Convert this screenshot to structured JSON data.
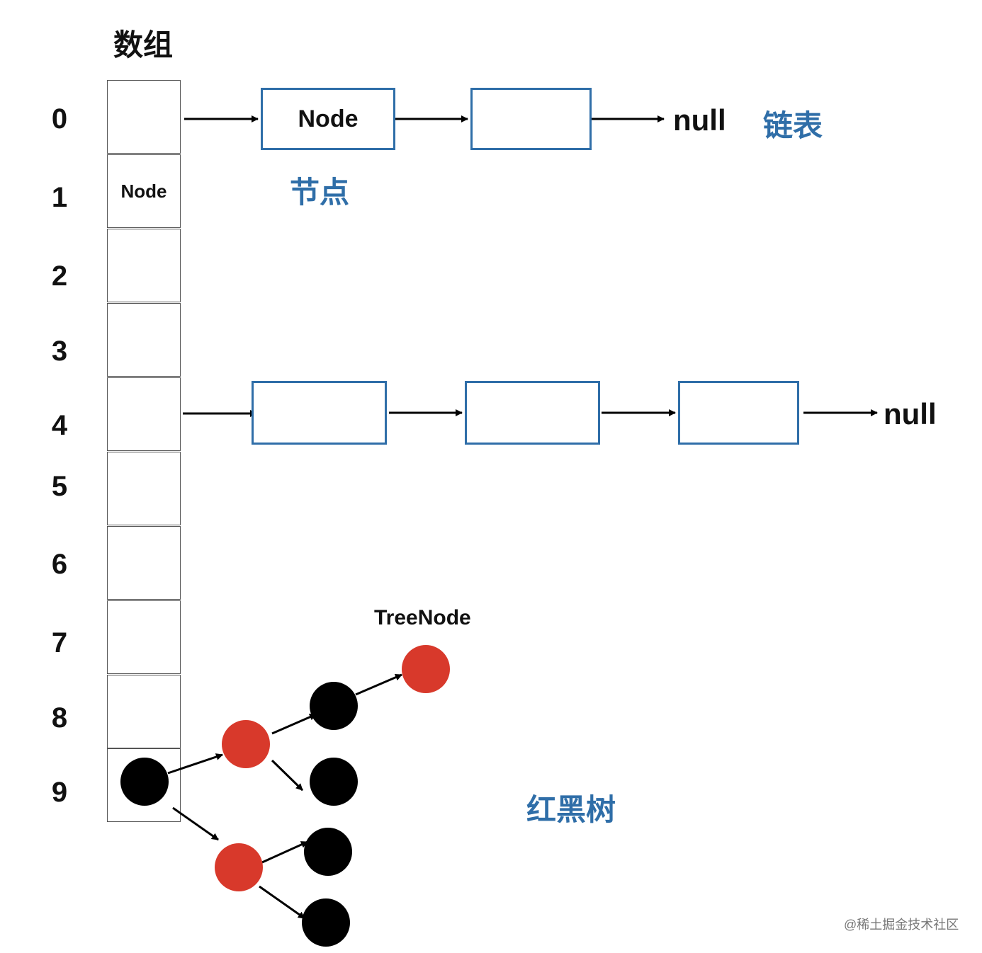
{
  "array": {
    "title": "数组",
    "indices": [
      "0",
      "1",
      "2",
      "3",
      "4",
      "5",
      "6",
      "7",
      "8",
      "9"
    ],
    "cells": [
      "",
      "Node",
      "",
      "",
      "",
      "",
      "",
      "",
      "",
      ""
    ]
  },
  "linked_list_row0": {
    "node_label": "Node",
    "null_label": "null",
    "node_caption": "节点",
    "list_caption": "链表"
  },
  "linked_list_row4": {
    "null_label": "null"
  },
  "tree": {
    "node_label": "TreeNode",
    "caption": "红黑树",
    "colors": {
      "red": "#d8392b",
      "black": "#000000"
    }
  },
  "colors": {
    "accent": "#2f6ea8"
  },
  "watermark": "@稀土掘金技术社区"
}
